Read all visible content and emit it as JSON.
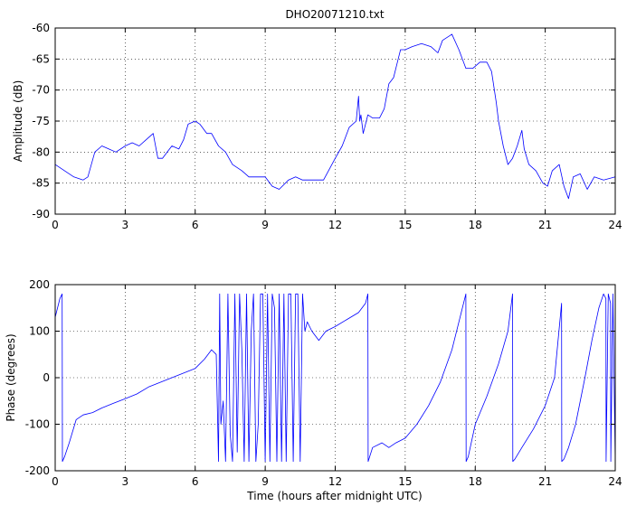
{
  "chart_data": [
    {
      "type": "line",
      "title": "DHO20071210.txt",
      "xlabel": "",
      "ylabel": "Amplitude (dB)",
      "xlim": [
        0,
        24
      ],
      "ylim": [
        -90,
        -60
      ],
      "xticks": [
        0,
        3,
        6,
        9,
        12,
        15,
        18,
        21,
        24
      ],
      "yticks": [
        -90,
        -85,
        -80,
        -75,
        -70,
        -65,
        -60
      ],
      "grid": true,
      "color": "#0000ff",
      "series": [
        {
          "x": [
            0,
            0.4,
            0.8,
            1.2,
            1.4,
            1.7,
            2.0,
            2.3,
            2.6,
            3.0,
            3.3,
            3.6,
            3.9,
            4.2,
            4.4,
            4.6,
            4.8,
            5.0,
            5.3,
            5.5,
            5.7,
            6.0,
            6.2,
            6.5,
            6.7,
            7.0,
            7.3,
            7.6,
            8.0,
            8.3,
            8.6,
            9.0,
            9.3,
            9.6,
            10.0,
            10.3,
            10.6,
            11.0,
            11.5,
            12.0,
            12.3,
            12.6,
            12.9,
            13.0,
            13.05,
            13.1,
            13.2,
            13.4,
            13.6,
            13.9,
            14.1,
            14.3,
            14.5,
            14.7,
            14.8,
            15.0,
            15.3,
            15.7,
            16.1,
            16.4,
            16.6,
            16.8,
            17.0,
            17.3,
            17.6,
            17.9,
            18.2,
            18.5,
            18.7,
            18.9,
            19.0,
            19.2,
            19.4,
            19.6,
            19.8,
            20.0,
            20.1,
            20.3,
            20.6,
            20.9,
            21.1,
            21.3,
            21.6,
            21.8,
            22.0,
            22.2,
            22.5,
            22.8,
            23.1,
            23.5,
            24.0
          ],
          "y": [
            -82,
            -83,
            -84,
            -84.5,
            -84,
            -80,
            -79,
            -79.5,
            -80,
            -79,
            -78.5,
            -79,
            -78,
            -77,
            -81,
            -81,
            -80,
            -79,
            -79.5,
            -78,
            -75.5,
            -75,
            -75.5,
            -77,
            -77,
            -79,
            -80,
            -82,
            -83,
            -84,
            -84,
            -84,
            -85.5,
            -86,
            -84.5,
            -84,
            -84.5,
            -84.5,
            -84.5,
            -81,
            -79,
            -76,
            -75,
            -71,
            -75,
            -74,
            -77,
            -74,
            -74.5,
            -74.5,
            -73,
            -69,
            -68,
            -65,
            -63.5,
            -63.5,
            -63,
            -62.5,
            -63,
            -64,
            -62,
            -61.5,
            -61,
            -63.5,
            -66.5,
            -66.5,
            -65.5,
            -65.5,
            -67,
            -72,
            -75,
            -79,
            -82,
            -81,
            -79,
            -76.5,
            -79.5,
            -82,
            -83,
            -85,
            -85.5,
            -83,
            -82,
            -85.5,
            -87.5,
            -84,
            -83.5,
            -86,
            -84,
            -84.5,
            -84
          ]
        }
      ]
    },
    {
      "type": "line",
      "title": "",
      "xlabel": "Time (hours after midnight UTC)",
      "ylabel": "Phase (degrees)",
      "xlim": [
        0,
        24
      ],
      "ylim": [
        -200,
        200
      ],
      "xticks": [
        0,
        3,
        6,
        9,
        12,
        15,
        18,
        21,
        24
      ],
      "yticks": [
        -200,
        -100,
        0,
        100,
        200
      ],
      "grid": true,
      "color": "#0000ff",
      "series": [
        {
          "x": [
            0,
            0.2,
            0.3,
            0.31,
            0.4,
            0.6,
            0.9,
            1.2,
            1.6,
            2.0,
            2.5,
            3.0,
            3.5,
            4.0,
            4.5,
            5.0,
            5.5,
            6.0,
            6.4,
            6.7,
            6.9,
            7.0,
            7.05,
            7.1,
            7.2,
            7.3,
            7.4,
            7.5,
            7.6,
            7.7,
            7.8,
            7.9,
            8.0,
            8.1,
            8.2,
            8.3,
            8.4,
            8.5,
            8.6,
            8.7,
            8.8,
            8.9,
            9.0,
            9.1,
            9.2,
            9.3,
            9.4,
            9.5,
            9.6,
            9.7,
            9.8,
            9.9,
            10.0,
            10.1,
            10.2,
            10.3,
            10.4,
            10.5,
            10.6,
            10.7,
            10.8,
            11.0,
            11.3,
            11.6,
            12.0,
            12.5,
            13.0,
            13.3,
            13.4,
            13.41,
            13.6,
            14.0,
            14.3,
            14.6,
            15.0,
            15.5,
            16.0,
            16.5,
            17.0,
            17.4,
            17.6,
            17.61,
            17.7,
            18.0,
            18.5,
            19.0,
            19.4,
            19.6,
            19.61,
            19.7,
            20.0,
            20.5,
            21.0,
            21.4,
            21.7,
            21.71,
            21.8,
            22.0,
            22.3,
            22.7,
            23.0,
            23.3,
            23.5,
            23.6,
            23.61,
            23.7,
            23.8,
            23.81,
            23.9,
            24.0
          ],
          "y": [
            130,
            170,
            180,
            -180,
            -170,
            -140,
            -90,
            -80,
            -75,
            -65,
            -55,
            -45,
            -35,
            -20,
            -10,
            0,
            10,
            20,
            40,
            60,
            50,
            -180,
            180,
            -100,
            -50,
            -180,
            180,
            -120,
            -180,
            180,
            -160,
            180,
            60,
            -180,
            180,
            -180,
            100,
            180,
            -180,
            -100,
            180,
            180,
            -180,
            180,
            -180,
            180,
            150,
            -180,
            180,
            -180,
            180,
            -180,
            180,
            180,
            -180,
            180,
            180,
            -180,
            180,
            100,
            120,
            100,
            80,
            100,
            110,
            125,
            140,
            160,
            180,
            -180,
            -150,
            -140,
            -150,
            -140,
            -130,
            -100,
            -60,
            -10,
            60,
            140,
            180,
            -180,
            -170,
            -100,
            -40,
            30,
            100,
            180,
            -180,
            -175,
            -150,
            -110,
            -60,
            0,
            160,
            -180,
            -175,
            -150,
            -100,
            0,
            80,
            150,
            180,
            170,
            -180,
            180,
            160,
            -180,
            180,
            -180
          ]
        }
      ]
    }
  ]
}
